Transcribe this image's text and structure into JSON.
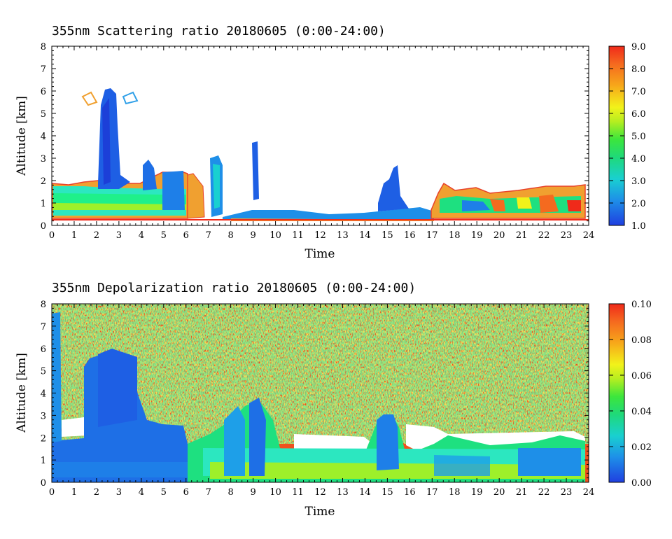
{
  "chart_data": [
    {
      "type": "heatmap",
      "title": "355nm Scattering ratio  20180605 (0:00-24:00)",
      "xlabel": "Time",
      "ylabel": "Altitude [km]",
      "xlim": [
        0,
        24
      ],
      "ylim": [
        0,
        8
      ],
      "x_ticks": [
        "0",
        "1",
        "2",
        "3",
        "4",
        "5",
        "6",
        "7",
        "8",
        "9",
        "10",
        "11",
        "12",
        "13",
        "14",
        "15",
        "16",
        "17",
        "18",
        "19",
        "20",
        "21",
        "22",
        "23",
        "24"
      ],
      "y_ticks": [
        "0",
        "1",
        "2",
        "3",
        "4",
        "5",
        "6",
        "7",
        "8"
      ],
      "colorbar": {
        "range": [
          1.0,
          9.0
        ],
        "labels": [
          "1.0",
          "2.0",
          "3.0",
          "4.0",
          "5.0",
          "6.0",
          "7.0",
          "8.0",
          "9.0"
        ]
      },
      "features": [
        {
          "time": [
            0,
            6
          ],
          "altitude": [
            0.3,
            1.9
          ],
          "value": 3.5
        },
        {
          "time": [
            2.2,
            3.2
          ],
          "altitude": [
            1.9,
            6.0
          ],
          "value": 1.8
        },
        {
          "time": [
            3.6,
            6.0
          ],
          "altitude": [
            1.0,
            3.0
          ],
          "value": 1.8
        },
        {
          "time": [
            6.5,
            7.6
          ],
          "altitude": [
            0.3,
            3.0
          ],
          "value": 2.2
        },
        {
          "time": [
            8.9,
            9.2
          ],
          "altitude": [
            0.3,
            3.7
          ],
          "value": 1.6
        },
        {
          "time": [
            14.8,
            15.8
          ],
          "altitude": [
            0.3,
            2.8
          ],
          "value": 1.8
        },
        {
          "time": [
            17.3,
            24
          ],
          "altitude": [
            0.3,
            1.7
          ],
          "value": 5.5
        }
      ]
    },
    {
      "type": "heatmap",
      "title": "355nm Depolarization ratio  20180605 (0:00-24:00)",
      "xlabel": "Time",
      "ylabel": "Altitude [km]",
      "xlim": [
        0,
        24
      ],
      "ylim": [
        0,
        8
      ],
      "x_ticks": [
        "0",
        "1",
        "2",
        "3",
        "4",
        "5",
        "6",
        "7",
        "8",
        "9",
        "10",
        "11",
        "12",
        "13",
        "14",
        "15",
        "16",
        "17",
        "18",
        "19",
        "20",
        "21",
        "22",
        "23",
        "24"
      ],
      "y_ticks": [
        "0",
        "1",
        "2",
        "3",
        "4",
        "5",
        "6",
        "7",
        "8"
      ],
      "colorbar": {
        "range": [
          0.0,
          0.1
        ],
        "labels": [
          "0.00",
          "0.02",
          "0.04",
          "0.06",
          "0.08",
          "0.10"
        ]
      },
      "features": [
        {
          "time": [
            0,
            24
          ],
          "altitude": [
            2.5,
            8.0
          ],
          "value": 0.09
        },
        {
          "time": [
            0,
            6
          ],
          "altitude": [
            0.2,
            1.8
          ],
          "value": 0.01
        },
        {
          "time": [
            2.2,
            4.0
          ],
          "altitude": [
            1.8,
            5.8
          ],
          "value": 0.012
        },
        {
          "time": [
            6,
            24
          ],
          "altitude": [
            0.2,
            1.5
          ],
          "value": 0.035
        },
        {
          "time": [
            14.8,
            15.6
          ],
          "altitude": [
            0.3,
            2.9
          ],
          "value": 0.018
        }
      ]
    }
  ]
}
